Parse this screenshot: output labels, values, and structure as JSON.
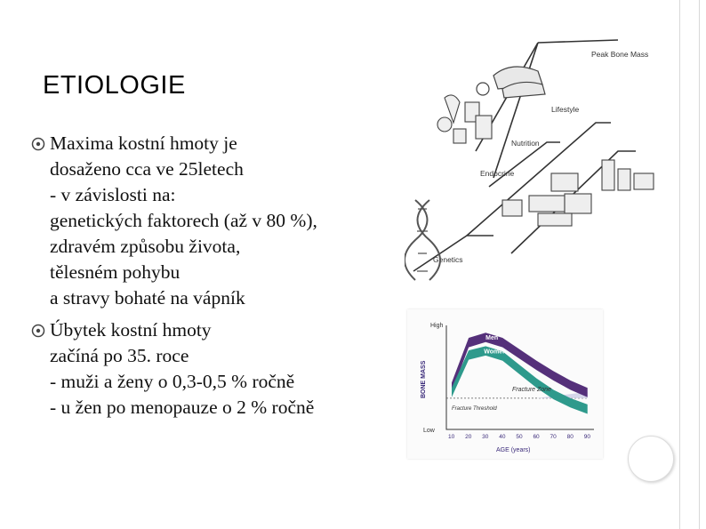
{
  "slide": {
    "title": "ETIOLOGIE",
    "bullets": [
      {
        "lines": [
          "Maxima kostní hmoty je",
          "dosaženo cca ve 25letech",
          "- v závislosti na:",
          "genetických faktorech (až v 80 %),",
          "zdravém způsobu života,",
          "tělesném pohybu",
          "a stravy bohaté na vápník"
        ]
      },
      {
        "lines": [
          "Úbytek kostní hmoty",
          "začíná po 35. roce",
          "- muži a ženy o 0,3-0,5 % ročně",
          "- u žen po menopauze o 2 % ročně"
        ]
      }
    ]
  },
  "figure_top": {
    "labels": {
      "peak": "Peak Bone Mass",
      "lifestyle": "Lifestyle",
      "nutrition": "Nutrition",
      "endocrine": "Endocrine",
      "genetics": "Genetics"
    }
  },
  "chart_data": {
    "type": "area",
    "ylabel": "BONE MASS",
    "xlabel": "AGE (years)",
    "y_ticks": [
      "High",
      "Low"
    ],
    "x": [
      10,
      20,
      30,
      40,
      50,
      60,
      70,
      80,
      90
    ],
    "series": [
      {
        "name": "Men",
        "values": [
          0.45,
          0.88,
          0.93,
          0.88,
          0.77,
          0.66,
          0.56,
          0.47,
          0.4
        ]
      },
      {
        "name": "Women",
        "values": [
          0.4,
          0.76,
          0.8,
          0.75,
          0.62,
          0.49,
          0.38,
          0.3,
          0.24
        ]
      }
    ],
    "annotations": [
      "Fracture Zone",
      "Fracture Threshold"
    ],
    "colors": {
      "men": "#55307a",
      "women": "#2e9a8c",
      "fracture_zone": "#d6d6ea"
    }
  }
}
